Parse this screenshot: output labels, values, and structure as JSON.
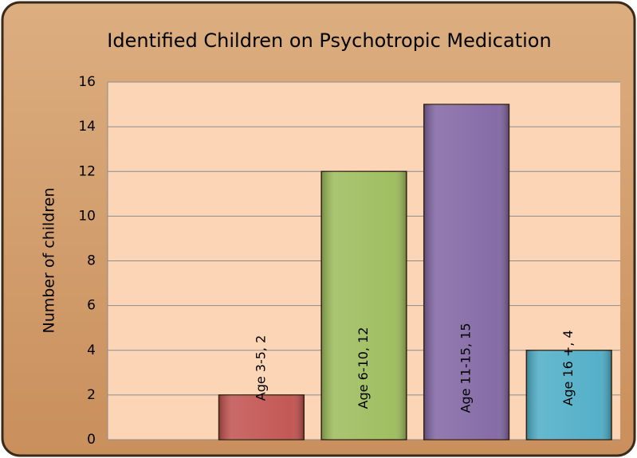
{
  "chart_data": {
    "type": "bar",
    "title": "Identified Children on Psychotropic Medication",
    "ylabel": "Number of children",
    "categories": [
      null,
      "Age 3-5",
      "Age 6-10",
      "Age 11-15",
      "Age 16 +"
    ],
    "values": [
      null,
      2,
      12,
      15,
      4
    ],
    "value_labels": [
      null,
      "Age 3-5, 2",
      "Age 6-10, 12",
      "Age 11-15, 15",
      "Age 16 +, 4"
    ],
    "colors": [
      null,
      "#c0504d",
      "#9bbb59",
      "#8064a2",
      "#4bacc6"
    ],
    "ylim": [
      0,
      16
    ],
    "yticks": [
      0,
      2,
      4,
      6,
      8,
      10,
      12,
      14,
      16
    ],
    "grid": true
  }
}
